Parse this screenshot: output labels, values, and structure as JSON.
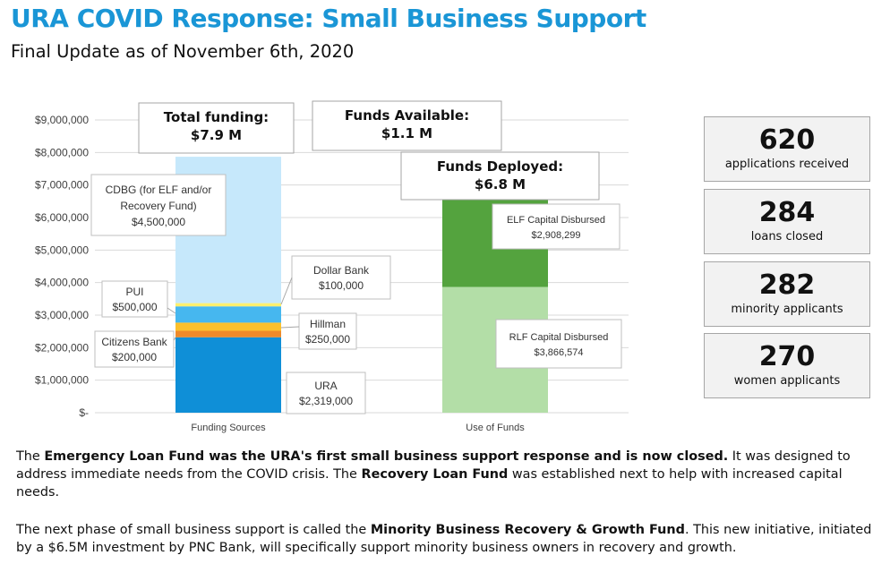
{
  "header": {
    "title": "URA COVID Response: Small Business Support",
    "subtitle": "Final Update as of November 6th, 2020"
  },
  "stats": [
    {
      "value": "620",
      "label": "applications received"
    },
    {
      "value": "284",
      "label": "loans closed"
    },
    {
      "value": "282",
      "label": "minority applicants"
    },
    {
      "value": "270",
      "label": "women applicants"
    }
  ],
  "callouts": {
    "total_funding": {
      "label": "Total funding:",
      "value": "$7.9 M"
    },
    "funds_available": {
      "label": "Funds Available:",
      "value": "$1.1 M"
    },
    "funds_deployed": {
      "label": "Funds Deployed:",
      "value": "$6.8 M"
    }
  },
  "paragraphs": {
    "p1": [
      {
        "text": "The ",
        "bold": false
      },
      {
        "text": "Emergency Loan Fund was the URA's first small business support response and is now closed.",
        "bold": true
      },
      {
        "text": " It was designed to address immediate needs from the COVID crisis. The ",
        "bold": false
      },
      {
        "text": "Recovery Loan Fund",
        "bold": true
      },
      {
        "text": " was established next to help with increased capital needs.",
        "bold": false
      }
    ],
    "p2": [
      {
        "text": "The next phase of small business support is called the ",
        "bold": false
      },
      {
        "text": "Minority Business Recovery & Growth Fund",
        "bold": true
      },
      {
        "text": ". This new initiative, initiated by a $6.5M investment by PNC Bank, will specifically support minority business owners in recovery and growth.",
        "bold": false
      }
    ]
  },
  "chart_data": {
    "type": "bar",
    "stacked": true,
    "categories": [
      "Funding Sources",
      "Use of Funds"
    ],
    "ylim": [
      0,
      9000000
    ],
    "y_ticks": [
      "$-",
      "$1,000,000",
      "$2,000,000",
      "$3,000,000",
      "$4,000,000",
      "$5,000,000",
      "$6,000,000",
      "$7,000,000",
      "$8,000,000",
      "$9,000,000"
    ],
    "grid": true,
    "colors": {
      "URA": "#0f8fd7",
      "Citizens Bank": "#ee8a2a",
      "Hillman": "#fbc02d",
      "PUI": "#46b7ef",
      "Dollar Bank": "#fff06e",
      "CDBG": "#c6e8fb",
      "RLF": "#b3dea7",
      "ELF": "#54a33e"
    },
    "series": [
      {
        "name": "URA",
        "category": "Funding Sources",
        "value": 2319000,
        "label_line1": "URA",
        "label_line2": "$2,319,000"
      },
      {
        "name": "Citizens Bank",
        "category": "Funding Sources",
        "value": 200000,
        "label_line1": "Citizens Bank",
        "label_line2": "$200,000"
      },
      {
        "name": "Hillman",
        "category": "Funding Sources",
        "value": 250000,
        "label_line1": "Hillman",
        "label_line2": "$250,000"
      },
      {
        "name": "PUI",
        "category": "Funding Sources",
        "value": 500000,
        "label_line1": "PUI",
        "label_line2": "$500,000"
      },
      {
        "name": "Dollar Bank",
        "category": "Funding Sources",
        "value": 100000,
        "label_line1": "Dollar Bank",
        "label_line2": "$100,000"
      },
      {
        "name": "CDBG",
        "category": "Funding Sources",
        "value": 4500000,
        "label_lines": [
          "CDBG (for ELF and/or",
          "Recovery Fund)",
          "$4,500,000"
        ]
      },
      {
        "name": "RLF",
        "category": "Use of Funds",
        "value": 3866574,
        "label_line1": "RLF Capital Disbursed",
        "label_line2": "$3,866,574"
      },
      {
        "name": "ELF",
        "category": "Use of Funds",
        "value": 2908299,
        "label_line1": "ELF Capital Disbursed",
        "label_line2": "$2,908,299"
      }
    ]
  }
}
